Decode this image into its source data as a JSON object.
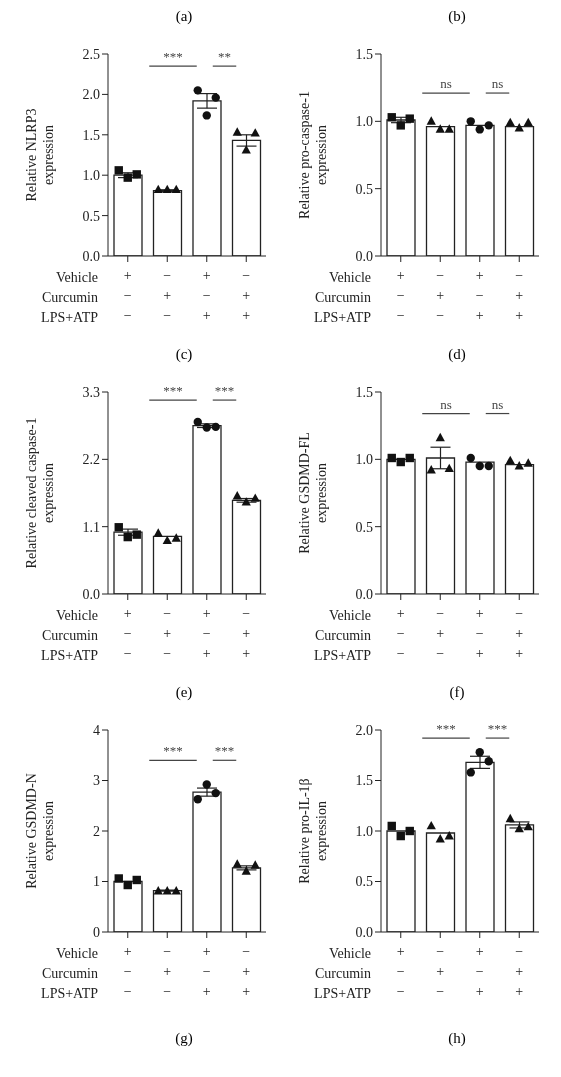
{
  "chart_data": [
    {
      "type": "bar",
      "title": "(a)",
      "ylabel": "Relative NLRP3 expression",
      "categories": [
        "+\n−\n−",
        "−\n+\n−",
        "+\n−\n+",
        "−\n+\n+"
      ],
      "ylim": [
        0,
        2.5
      ],
      "yticks": [
        {
          "value": 0,
          "label": "0.0"
        },
        {
          "value": 0.5,
          "label": "0.5"
        },
        {
          "value": 1,
          "label": "1.0"
        },
        {
          "value": 1.5,
          "label": "1.5"
        },
        {
          "value": 2,
          "label": "2.0"
        },
        {
          "value": 2.5,
          "label": "2.5"
        }
      ],
      "annotations": [
        "Vehicle",
        "Curcumin",
        "LPS+ATP",
        "***",
        "**"
      ],
      "series": [
        {
          "type": "bar",
          "color": "#ffffff",
          "values": [
            1.0,
            0.81,
            1.92,
            1.43
          ],
          "errors": [
            0.03,
            0.01,
            0.09,
            0.07
          ]
        },
        {
          "type": "scatter",
          "marker": "square",
          "color": "#111111",
          "x": [
            "+\n−\n−",
            "+\n−\n−",
            "+\n−\n−"
          ],
          "values": [
            1.06,
            0.97,
            1.01
          ]
        },
        {
          "type": "scatter",
          "marker": "triangle",
          "color": "#111111",
          "x": [
            "−\n+\n−",
            "−\n+\n−",
            "−\n+\n−"
          ],
          "values": [
            0.82,
            0.82,
            0.82
          ]
        },
        {
          "type": "scatter",
          "marker": "circle",
          "color": "#111111",
          "x": [
            "+\n−\n+",
            "+\n−\n+",
            "+\n−\n+"
          ],
          "values": [
            2.05,
            1.74,
            1.96
          ]
        },
        {
          "type": "scatter",
          "marker": "triangle",
          "color": "#111111",
          "x": [
            "−\n+\n+",
            "−\n+\n+",
            "−\n+\n+"
          ],
          "values": [
            1.53,
            1.31,
            1.52
          ]
        }
      ]
    },
    {
      "type": "bar",
      "title": "(b)",
      "ylabel": "Relative pro-caspase-1 expression",
      "categories": [
        "+\n−\n−",
        "−\n+\n−",
        "+\n−\n+",
        "−\n+\n+"
      ],
      "ylim": [
        0,
        1.5
      ],
      "yticks": [
        {
          "value": 0,
          "label": "0.0"
        },
        {
          "value": 0.5,
          "label": "0.5"
        },
        {
          "value": 1,
          "label": "1.0"
        },
        {
          "value": 1.5,
          "label": "1.5"
        }
      ],
      "annotations": [
        "Vehicle",
        "Curcumin",
        "LPS+ATP",
        "ns",
        "ns"
      ],
      "series": [
        {
          "type": "bar",
          "color": "#ffffff",
          "values": [
            1.01,
            0.96,
            0.97,
            0.96
          ],
          "errors": [
            0.02,
            null,
            null,
            null
          ]
        },
        {
          "type": "scatter",
          "marker": "square",
          "color": "#111111",
          "x": [
            "+\n−\n−",
            "+\n−\n−",
            "+\n−\n−"
          ],
          "values": [
            1.03,
            0.97,
            1.02
          ]
        },
        {
          "type": "scatter",
          "marker": "triangle",
          "color": "#111111",
          "x": [
            "−\n+\n−",
            "−\n+\n−",
            "−\n+\n−"
          ],
          "values": [
            1.0,
            0.94,
            0.94
          ]
        },
        {
          "type": "scatter",
          "marker": "circle",
          "color": "#111111",
          "x": [
            "+\n−\n+",
            "+\n−\n+",
            "+\n−\n+"
          ],
          "values": [
            1.0,
            0.94,
            0.97
          ]
        },
        {
          "type": "scatter",
          "marker": "triangle",
          "color": "#111111",
          "x": [
            "−\n+\n+",
            "−\n+\n+",
            "−\n+\n+"
          ],
          "values": [
            0.99,
            0.95,
            0.99
          ]
        }
      ]
    },
    {
      "type": "bar",
      "title": "(c)",
      "ylabel": "Relative cleaved caspase-1 expression",
      "categories": [
        "+\n−\n−",
        "−\n+\n−",
        "+\n−\n+",
        "−\n+\n+"
      ],
      "ylim": [
        0,
        3.3
      ],
      "yticks": [
        {
          "value": 0,
          "label": "0.0"
        },
        1.1,
        2.2,
        3.3
      ],
      "annotations": [
        "Vehicle",
        "Curcumin",
        "LPS+ATP",
        "***",
        "***"
      ],
      "series": [
        {
          "type": "bar",
          "color": "#ffffff",
          "values": [
            1.01,
            0.94,
            2.75,
            1.53
          ],
          "errors": [
            0.05,
            null,
            0.03,
            0.03
          ]
        },
        {
          "type": "scatter",
          "marker": "square",
          "color": "#111111",
          "x": [
            "+\n−\n−",
            "+\n−\n−",
            "+\n−\n−"
          ],
          "values": [
            1.09,
            0.93,
            0.97
          ]
        },
        {
          "type": "scatter",
          "marker": "triangle",
          "color": "#111111",
          "x": [
            "−\n+\n−",
            "−\n+\n−",
            "−\n+\n−"
          ],
          "values": [
            0.99,
            0.87,
            0.91
          ]
        },
        {
          "type": "scatter",
          "marker": "circle",
          "color": "#111111",
          "x": [
            "+\n−\n+",
            "+\n−\n+",
            "+\n−\n+"
          ],
          "values": [
            2.81,
            2.72,
            2.73
          ]
        },
        {
          "type": "scatter",
          "marker": "triangle",
          "color": "#111111",
          "x": [
            "−\n+\n+",
            "−\n+\n+",
            "−\n+\n+"
          ],
          "values": [
            1.6,
            1.5,
            1.56
          ]
        }
      ]
    },
    {
      "type": "bar",
      "title": "(d)",
      "ylabel": "Relative GSDMD-FL expression",
      "categories": [
        "+\n−\n−",
        "−\n+\n−",
        "+\n−\n+",
        "−\n+\n+"
      ],
      "ylim": [
        0,
        1.5
      ],
      "yticks": [
        {
          "value": 0,
          "label": "0.0"
        },
        {
          "value": 0.5,
          "label": "0.5"
        },
        {
          "value": 1,
          "label": "1.0"
        },
        {
          "value": 1.5,
          "label": "1.5"
        }
      ],
      "annotations": [
        "Vehicle",
        "Curcumin",
        "LPS+ATP",
        "ns",
        "ns"
      ],
      "series": [
        {
          "type": "bar",
          "color": "#ffffff",
          "values": [
            1.0,
            1.01,
            0.98,
            0.96
          ],
          "errors": [
            null,
            0.08,
            null,
            null
          ]
        },
        {
          "type": "scatter",
          "marker": "square",
          "color": "#111111",
          "x": [
            "+\n−\n−",
            "+\n−\n−",
            "+\n−\n−"
          ],
          "values": [
            1.01,
            0.98,
            1.01
          ]
        },
        {
          "type": "scatter",
          "marker": "triangle",
          "color": "#111111",
          "x": [
            "−\n+\n−",
            "−\n+\n−",
            "−\n+\n−"
          ],
          "values": [
            0.92,
            1.16,
            0.93
          ]
        },
        {
          "type": "scatter",
          "marker": "circle",
          "color": "#111111",
          "x": [
            "+\n−\n+",
            "+\n−\n+",
            "+\n−\n+"
          ],
          "values": [
            1.01,
            0.95,
            0.95
          ]
        },
        {
          "type": "scatter",
          "marker": "triangle",
          "color": "#111111",
          "x": [
            "−\n+\n+",
            "−\n+\n+",
            "−\n+\n+"
          ],
          "values": [
            0.99,
            0.95,
            0.97
          ]
        }
      ]
    },
    {
      "type": "bar",
      "title": "(e)",
      "ylabel": "Relative GSDMD-N expression",
      "categories": [
        "+\n−\n−",
        "−\n+\n−",
        "+\n−\n+",
        "−\n+\n+"
      ],
      "ylim": [
        0,
        4
      ],
      "yticks": [
        0,
        1,
        2,
        3,
        4
      ],
      "annotations": [
        "Vehicle",
        "Curcumin",
        "LPS+ATP",
        "***",
        "***",
        "(g)"
      ],
      "series": [
        {
          "type": "bar",
          "color": "#ffffff",
          "values": [
            1.0,
            0.82,
            2.77,
            1.27
          ],
          "errors": [
            null,
            0.01,
            0.08,
            0.04
          ]
        },
        {
          "type": "scatter",
          "marker": "square",
          "color": "#111111",
          "x": [
            "+\n−\n−",
            "+\n−\n−",
            "+\n−\n−"
          ],
          "values": [
            1.06,
            0.93,
            1.03
          ]
        },
        {
          "type": "scatter",
          "marker": "triangle",
          "color": "#111111",
          "x": [
            "−\n+\n−",
            "−\n+\n−",
            "−\n+\n−"
          ],
          "values": [
            0.81,
            0.81,
            0.81
          ]
        },
        {
          "type": "scatter",
          "marker": "circle",
          "color": "#111111",
          "x": [
            "+\n−\n+",
            "+\n−\n+",
            "+\n−\n+"
          ],
          "values": [
            2.63,
            2.92,
            2.75
          ]
        },
        {
          "type": "scatter",
          "marker": "triangle",
          "color": "#111111",
          "x": [
            "−\n+\n+",
            "−\n+\n+",
            "−\n+\n+"
          ],
          "values": [
            1.34,
            1.2,
            1.32
          ]
        }
      ]
    },
    {
      "type": "bar",
      "title": "(f)",
      "ylabel": "Relative pro-IL-1β expression",
      "categories": [
        "+\n−\n−",
        "−\n+\n−",
        "+\n−\n+",
        "−\n+\n+"
      ],
      "ylim": [
        0,
        2
      ],
      "yticks": [
        {
          "value": 0,
          "label": "0.0"
        },
        {
          "value": 0.5,
          "label": "0.5"
        },
        {
          "value": 1,
          "label": "1.0"
        },
        {
          "value": 1.5,
          "label": "1.5"
        },
        {
          "value": 2,
          "label": "2.0"
        }
      ],
      "annotations": [
        "Vehicle",
        "Curcumin",
        "LPS+ATP",
        "***",
        "***",
        "(h)"
      ],
      "series": [
        {
          "type": "bar",
          "color": "#ffffff",
          "values": [
            1.0,
            0.98,
            1.68,
            1.06
          ],
          "errors": [
            null,
            null,
            0.06,
            0.03
          ]
        },
        {
          "type": "scatter",
          "marker": "square",
          "color": "#111111",
          "x": [
            "+\n−\n−",
            "+\n−\n−",
            "+\n−\n−"
          ],
          "values": [
            1.05,
            0.95,
            1.0
          ]
        },
        {
          "type": "scatter",
          "marker": "triangle",
          "color": "#111111",
          "x": [
            "−\n+\n−",
            "−\n+\n−",
            "−\n+\n−"
          ],
          "values": [
            1.05,
            0.92,
            0.95
          ]
        },
        {
          "type": "scatter",
          "marker": "circle",
          "color": "#111111",
          "x": [
            "+\n−\n+",
            "+\n−\n+",
            "+\n−\n+"
          ],
          "values": [
            1.58,
            1.78,
            1.69
          ]
        },
        {
          "type": "scatter",
          "marker": "triangle",
          "color": "#111111",
          "x": [
            "−\n+\n+",
            "−\n+\n+",
            "−\n+\n+"
          ],
          "values": [
            1.12,
            1.02,
            1.04
          ]
        }
      ]
    }
  ]
}
